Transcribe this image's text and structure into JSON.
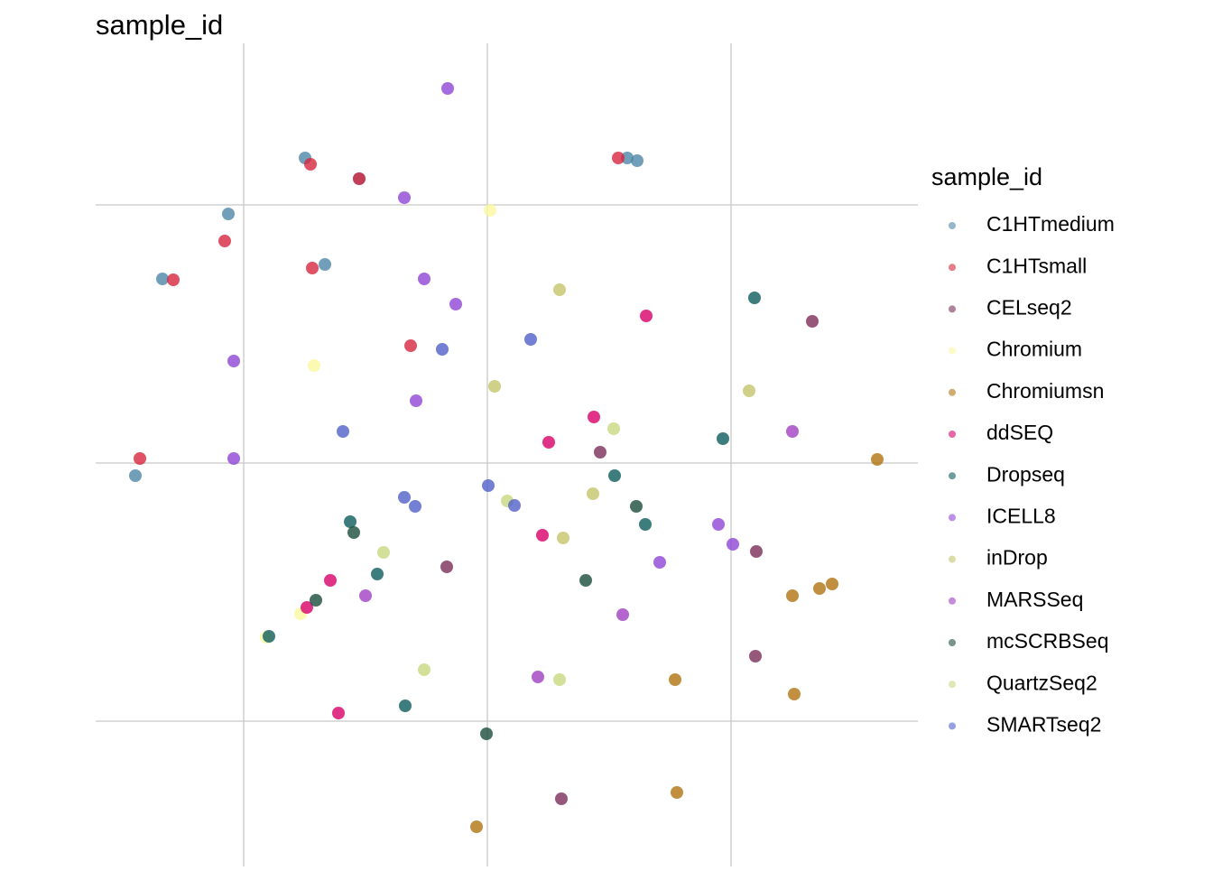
{
  "chart_data": {
    "type": "scatter",
    "title": "sample_id",
    "legend_title": "sample_id",
    "legend_position": "right",
    "grid": true,
    "xlim": [
      -434,
      477
    ],
    "ylim": [
      -447,
      465
    ],
    "xticks": [
      -270,
      0,
      270
    ],
    "yticks": [
      -286,
      0,
      286
    ],
    "series": [
      {
        "name": "C1HTmedium",
        "color": "#4e87a8",
        "x": [
          -202,
          -287,
          -360,
          -180,
          -390,
          166,
          155,
          -142
        ],
        "y": [
          338,
          276,
          204,
          220,
          -14,
          335,
          338,
          315
        ]
      },
      {
        "name": "C1HTsmall",
        "color": "#d7263d",
        "x": [
          -196,
          -291,
          -348,
          -194,
          -385,
          145,
          -142,
          -85
        ],
        "y": [
          331,
          246,
          203,
          216,
          5,
          338,
          315,
          130
        ]
      },
      {
        "name": "CELseq2",
        "color": "#7a2e5a",
        "x": [
          360,
          298,
          -45,
          297,
          82,
          125
        ],
        "y": [
          157,
          -98,
          -115,
          -214,
          -372,
          12
        ]
      },
      {
        "name": "Chromium",
        "color": "#fbf7a0",
        "x": [
          3,
          -192,
          -245,
          -207
        ],
        "y": [
          280,
          108,
          -193,
          -167
        ]
      },
      {
        "name": "Chromiumsn",
        "color": "#b07410",
        "x": [
          432,
          338,
          382,
          368,
          208,
          340,
          210,
          -12
        ],
        "y": [
          4,
          -147,
          -134,
          -139,
          -240,
          -256,
          -365,
          -403
        ]
      },
      {
        "name": "ddSEQ",
        "color": "#d8006a",
        "x": [
          176,
          118,
          68,
          61,
          -174,
          -165,
          -200
        ],
        "y": [
          163,
          51,
          23,
          -80,
          -130,
          -277,
          -160
        ]
      },
      {
        "name": "Dropseq",
        "color": "#0e5c5c",
        "x": [
          296,
          261,
          141,
          175,
          -122,
          -91,
          -242,
          -152
        ],
        "y": [
          183,
          27,
          -14,
          -68,
          -123,
          -269,
          -192,
          -65
        ]
      },
      {
        "name": "ICELL8",
        "color": "#8f45d6",
        "x": [
          -44,
          -92,
          -70,
          -35,
          -281,
          -281,
          -79,
          256,
          191,
          272
        ],
        "y": [
          415,
          294,
          204,
          176,
          113,
          5,
          69,
          -68,
          -110,
          -90
        ]
      },
      {
        "name": "inDrop",
        "color": "#c4c46a",
        "x": [
          8,
          290,
          80,
          117,
          84
        ],
        "y": [
          85,
          80,
          192,
          -34,
          -83
        ]
      },
      {
        "name": "MARSSeq",
        "color": "#a040c0",
        "x": [
          338,
          150,
          -135,
          56
        ],
        "y": [
          35,
          -168,
          -147,
          -237
        ]
      },
      {
        "name": "mcSCRBSeq",
        "color": "#1c4e3c",
        "x": [
          165,
          109,
          -1,
          -148,
          -190
        ],
        "y": [
          -48,
          -130,
          -300,
          -77,
          -152
        ]
      },
      {
        "name": "QuartzSeq2",
        "color": "#c8d880",
        "x": [
          -70,
          -115,
          80,
          22,
          140
        ],
        "y": [
          -229,
          -99,
          -240,
          -42,
          38
        ]
      },
      {
        "name": "SMARTseq2",
        "color": "#5060c8",
        "x": [
          -50,
          48,
          -160,
          -92,
          -80,
          1,
          30
        ],
        "y": [
          126,
          137,
          35,
          -38,
          -48,
          -25,
          -47
        ]
      }
    ]
  }
}
